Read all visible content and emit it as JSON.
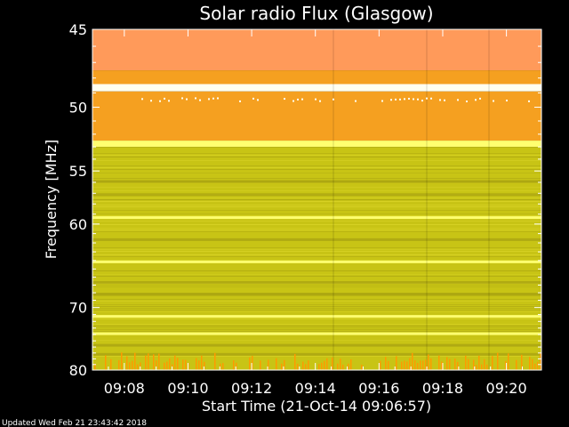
{
  "chart_data": {
    "type": "heatmap",
    "title": "Solar radio Flux (Glasgow)",
    "xlabel": "Start Time (21-Oct-14 09:06:57)",
    "ylabel": "Frequency [MHz]",
    "footer": "Updated Wed Feb 21 23:43:42 2018",
    "x_ticks": [
      "09:08",
      "09:10",
      "09:12",
      "09:14",
      "09:16",
      "09:18",
      "09:20"
    ],
    "x_tick_minutes": [
      8,
      10,
      12,
      14,
      16,
      18,
      20
    ],
    "xlim_minutes": [
      7.0,
      21.1
    ],
    "y_ticks": [
      "45",
      "50",
      "55",
      "60",
      "70",
      "80"
    ],
    "y_tick_values": [
      45,
      50,
      55,
      60,
      70,
      80
    ],
    "ylim": [
      45,
      80
    ],
    "y_scale": "reciprocal",
    "colors": {
      "background": "#000000",
      "base": "#c8c415",
      "band_top": "#ff9a5a",
      "band_orange": "#f5a020",
      "line_bright": "#ffff70",
      "line_white": "#fffff0",
      "dark": "#a09a10",
      "spike": "#ff9a00"
    },
    "bands": [
      {
        "from": 45.0,
        "to": 47.5,
        "level": "band_top"
      },
      {
        "from": 47.5,
        "to": 48.4,
        "level": "band_orange"
      },
      {
        "from": 48.4,
        "to": 48.9,
        "level": "line_white"
      },
      {
        "from": 48.9,
        "to": 52.5,
        "level": "band_orange"
      },
      {
        "from": 52.5,
        "to": 53.0,
        "level": "line_bright"
      },
      {
        "from": 53.0,
        "to": 80.0,
        "level": "base"
      }
    ],
    "bright_lines_mhz": [
      59.3,
      64.1,
      71.2,
      73.8
    ],
    "dark_lines_mhz": [
      55.8,
      57.0,
      61.5,
      66.5,
      68.0,
      75.5,
      77.0
    ]
  }
}
